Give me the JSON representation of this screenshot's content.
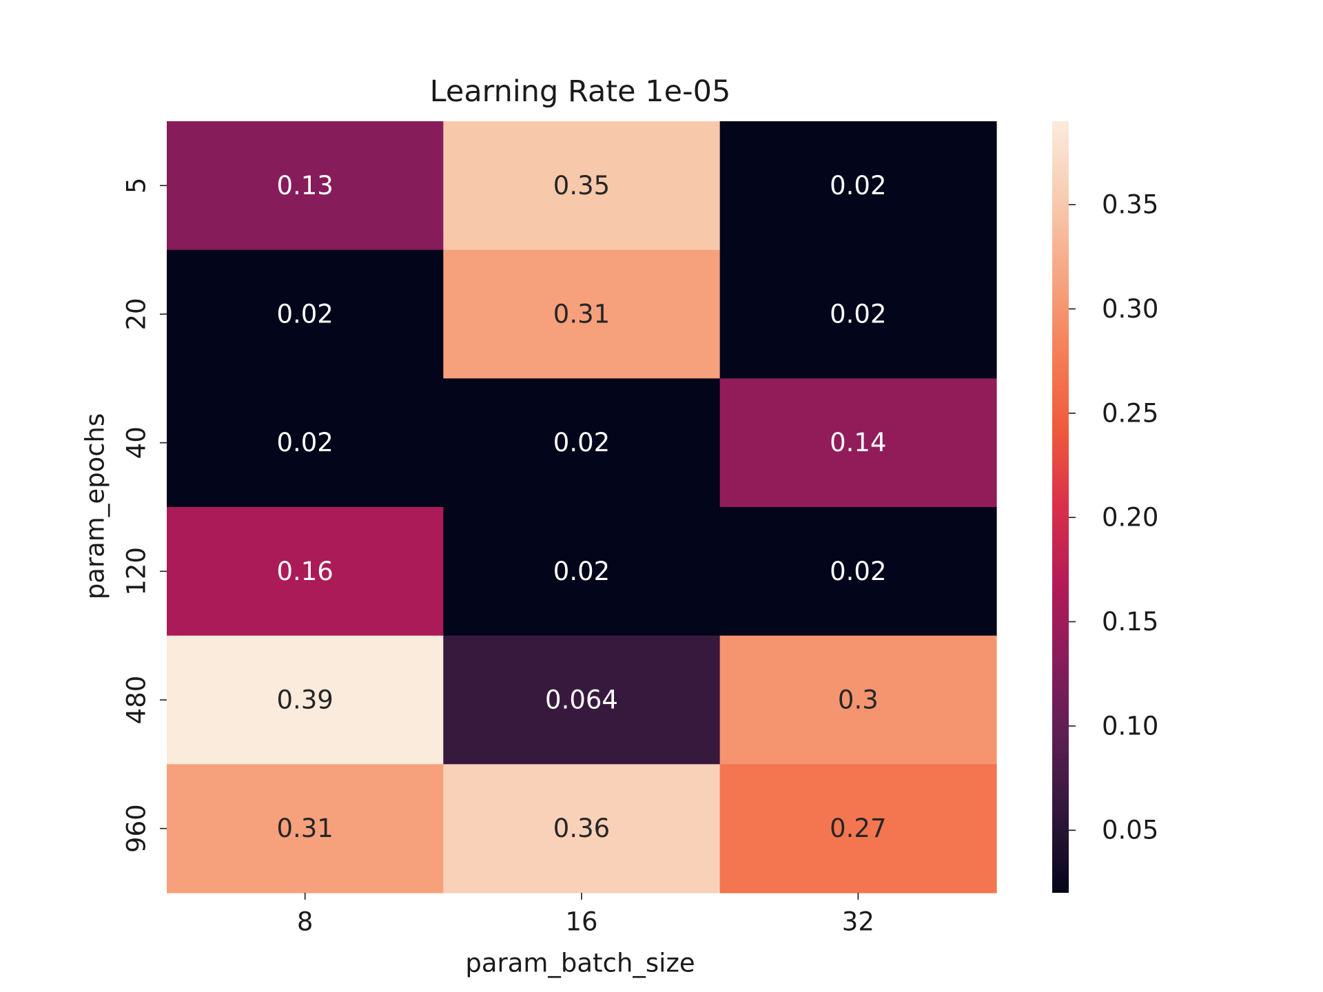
{
  "chart_data": {
    "type": "heatmap",
    "title": "Learning Rate 1e-05",
    "xlabel": "param_batch_size",
    "ylabel": "param_epochs",
    "x_categories": [
      "8",
      "16",
      "32"
    ],
    "y_categories": [
      "5",
      "20",
      "40",
      "120",
      "480",
      "960"
    ],
    "values": [
      [
        0.13,
        0.35,
        0.02
      ],
      [
        0.02,
        0.31,
        0.02
      ],
      [
        0.02,
        0.02,
        0.14
      ],
      [
        0.16,
        0.02,
        0.02
      ],
      [
        0.39,
        0.064,
        0.3
      ],
      [
        0.31,
        0.36,
        0.27
      ]
    ],
    "annotations": [
      [
        "0.13",
        "0.35",
        "0.02"
      ],
      [
        "0.02",
        "0.31",
        "0.02"
      ],
      [
        "0.02",
        "0.02",
        "0.14"
      ],
      [
        "0.16",
        "0.02",
        "0.02"
      ],
      [
        "0.39",
        "0.064",
        "0.3"
      ],
      [
        "0.31",
        "0.36",
        "0.27"
      ]
    ],
    "colormap": "rocket",
    "colorbar": {
      "range": [
        0.02,
        0.39
      ],
      "ticks": [
        0.05,
        0.1,
        0.15,
        0.2,
        0.25,
        0.3,
        0.35
      ],
      "tick_labels": [
        "0.05",
        "0.10",
        "0.15",
        "0.20",
        "0.25",
        "0.30",
        "0.35"
      ]
    },
    "colormap_stops": [
      "#03051a",
      "#2f1739",
      "#5c1f52",
      "#881c5a",
      "#b31b56",
      "#d9304a",
      "#ef5a3c",
      "#f47f57",
      "#f6a683",
      "#f8cbaf",
      "#faebdd"
    ]
  }
}
